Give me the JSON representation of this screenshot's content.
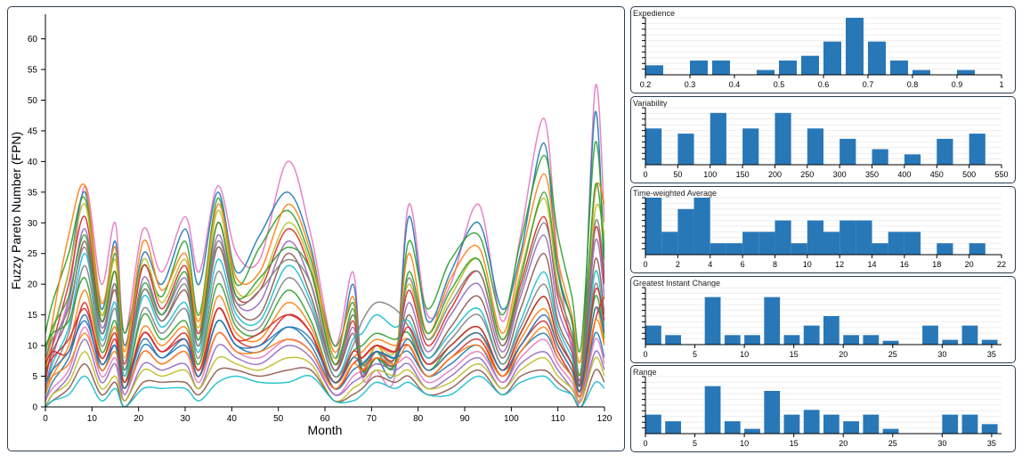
{
  "chart_data": [
    {
      "type": "line",
      "title": "",
      "xlabel": "Month",
      "ylabel": "Fuzzy Pareto Number (FPN)",
      "xlim": [
        0,
        120
      ],
      "ylim": [
        0,
        64
      ],
      "x_ticks": [
        0,
        10,
        20,
        30,
        40,
        50,
        60,
        70,
        80,
        90,
        100,
        110,
        120
      ],
      "y_ticks": [
        0,
        5,
        10,
        15,
        20,
        25,
        30,
        35,
        40,
        45,
        50,
        55,
        60
      ],
      "grid": false,
      "legend": "none",
      "x": [
        0,
        1.5,
        5,
        8.5,
        12,
        15,
        17,
        21,
        25,
        30,
        33,
        37,
        41,
        46,
        52,
        57,
        62,
        66,
        68,
        71,
        75,
        78,
        82,
        87,
        93,
        98,
        102,
        107,
        110,
        113,
        115,
        118,
        120
      ],
      "series": [
        {
          "color": "#e377c2",
          "values": [
            8,
            10,
            18,
            36,
            20,
            30,
            12,
            29,
            22,
            31,
            22,
            36,
            25,
            24,
            40,
            28,
            10,
            22,
            5,
            6,
            5,
            33,
            15,
            20,
            33,
            14,
            28,
            47,
            24,
            9,
            3,
            52,
            30
          ]
        },
        {
          "color": "#1f77b4",
          "values": [
            8,
            12,
            22,
            35,
            16,
            27,
            10,
            25,
            20,
            29,
            20,
            35,
            22,
            28,
            35,
            26,
            8,
            20,
            6,
            8,
            6,
            31,
            14,
            22,
            30,
            16,
            25,
            43,
            22,
            14,
            5,
            48,
            20
          ]
        },
        {
          "color": "#2ca02c",
          "values": [
            12,
            17,
            25,
            34,
            15,
            25,
            12,
            23,
            18,
            27,
            15,
            34,
            20,
            26,
            32,
            24,
            10,
            17,
            7,
            9,
            7,
            27,
            16,
            24,
            28,
            15,
            27,
            41,
            28,
            18,
            10,
            43,
            25
          ]
        },
        {
          "color": "#ff7f0e",
          "values": [
            6,
            14,
            28,
            36,
            17,
            26,
            9,
            27,
            19,
            25,
            14,
            33,
            21,
            22,
            33,
            25,
            9,
            18,
            6,
            10,
            8,
            25,
            12,
            21,
            26,
            12,
            24,
            38,
            24,
            15,
            8,
            35,
            33
          ]
        },
        {
          "color": "#bcbd22",
          "values": [
            5,
            12,
            22,
            33,
            15,
            24,
            8,
            24,
            17,
            24,
            13,
            32,
            19,
            20,
            30,
            23,
            8,
            15,
            7,
            10,
            9,
            20,
            11,
            18,
            24,
            11,
            22,
            34,
            20,
            12,
            6,
            32,
            28
          ]
        },
        {
          "color": "#d62728",
          "values": [
            4,
            10,
            20,
            31,
            14,
            22,
            7,
            23,
            16,
            23,
            12,
            30,
            18,
            19,
            29,
            22,
            7,
            14,
            6,
            9,
            8,
            19,
            10,
            16,
            22,
            10,
            20,
            31,
            18,
            11,
            5,
            29,
            20
          ]
        },
        {
          "color": "#9467bd",
          "values": [
            3,
            8,
            17,
            29,
            13,
            20,
            6,
            21,
            15,
            21,
            11,
            28,
            17,
            17,
            27,
            20,
            6,
            13,
            5,
            8,
            7,
            17,
            9,
            15,
            20,
            9,
            18,
            28,
            16,
            10,
            4,
            27,
            18
          ]
        },
        {
          "color": "#8c564b",
          "values": [
            5,
            9,
            15,
            27,
            12,
            19,
            5,
            19,
            14,
            19,
            10,
            26,
            16,
            15,
            25,
            18,
            6,
            12,
            5,
            8,
            7,
            15,
            8,
            13,
            18,
            8,
            16,
            25,
            14,
            9,
            4,
            24,
            15
          ]
        },
        {
          "color": "#17becf",
          "values": [
            2,
            7,
            13,
            25,
            11,
            17,
            5,
            18,
            13,
            17,
            9,
            24,
            15,
            14,
            23,
            17,
            5,
            11,
            12,
            15,
            13,
            14,
            8,
            12,
            16,
            7,
            14,
            22,
            13,
            8,
            3,
            22,
            13
          ]
        },
        {
          "color": "#7f7f7f",
          "values": [
            3,
            6,
            12,
            23,
            10,
            16,
            4,
            16,
            12,
            16,
            8,
            22,
            14,
            13,
            21,
            16,
            5,
            10,
            14,
            17,
            16,
            13,
            7,
            11,
            15,
            7,
            13,
            20,
            12,
            7,
            3,
            20,
            12
          ]
        },
        {
          "color": "#2ca02c",
          "values": [
            10,
            12,
            14,
            21,
            9,
            14,
            4,
            15,
            11,
            14,
            7,
            20,
            13,
            12,
            19,
            14,
            4,
            9,
            10,
            12,
            11,
            12,
            6,
            10,
            13,
            6,
            12,
            18,
            11,
            7,
            3,
            18,
            11
          ]
        },
        {
          "color": "#ff7f0e",
          "values": [
            2,
            5,
            10,
            19,
            8,
            13,
            3,
            13,
            10,
            13,
            6,
            18,
            12,
            11,
            17,
            13,
            4,
            8,
            9,
            11,
            10,
            11,
            6,
            9,
            12,
            5,
            11,
            16,
            10,
            6,
            2,
            16,
            10
          ]
        },
        {
          "color": "#d62728",
          "values": [
            7,
            9,
            9,
            17,
            7,
            11,
            3,
            12,
            9,
            11,
            5,
            16,
            11,
            10,
            15,
            12,
            3,
            7,
            8,
            10,
            9,
            10,
            5,
            8,
            11,
            5,
            10,
            14,
            9,
            5,
            2,
            14,
            18
          ]
        },
        {
          "color": "#1f77b4",
          "values": [
            1,
            4,
            8,
            15,
            6,
            10,
            2,
            10,
            8,
            10,
            5,
            14,
            10,
            9,
            13,
            10,
            3,
            6,
            7,
            9,
            8,
            9,
            5,
            7,
            10,
            4,
            9,
            12,
            8,
            5,
            2,
            12,
            8
          ]
        },
        {
          "color": "#e377c2",
          "values": [
            1,
            3,
            6,
            13,
            5,
            8,
            2,
            9,
            7,
            9,
            4,
            12,
            9,
            8,
            11,
            9,
            2,
            5,
            6,
            8,
            7,
            8,
            4,
            6,
            9,
            4,
            8,
            11,
            7,
            4,
            1,
            11,
            7
          ]
        },
        {
          "color": "#9467bd",
          "values": [
            0,
            2,
            5,
            11,
            4,
            7,
            1,
            7,
            6,
            7,
            3,
            10,
            8,
            7,
            10,
            8,
            2,
            4,
            5,
            7,
            6,
            7,
            3,
            5,
            8,
            3,
            7,
            9,
            6,
            3,
            1,
            9,
            6
          ]
        },
        {
          "color": "#bcbd22",
          "values": [
            0,
            2,
            4,
            9,
            3,
            5,
            1,
            6,
            5,
            6,
            3,
            8,
            7,
            6,
            8,
            7,
            1,
            3,
            4,
            6,
            5,
            6,
            3,
            4,
            7,
            3,
            6,
            8,
            5,
            3,
            1,
            8,
            5
          ]
        },
        {
          "color": "#8c564b",
          "values": [
            0,
            1,
            3,
            7,
            2,
            4,
            0,
            4,
            4,
            4,
            2,
            6,
            6,
            5,
            6,
            6,
            1,
            2,
            3,
            5,
            4,
            5,
            2,
            3,
            6,
            2,
            5,
            6,
            4,
            2,
            0,
            6,
            4
          ]
        },
        {
          "color": "#17becf",
          "values": [
            0,
            1,
            2,
            5,
            1,
            3,
            0,
            3,
            3,
            3,
            1,
            4,
            5,
            4,
            4,
            5,
            1,
            1,
            2,
            4,
            3,
            4,
            2,
            2,
            5,
            2,
            4,
            5,
            3,
            2,
            0,
            4,
            3
          ]
        },
        {
          "color": "#2ca02c",
          "values": [
            9,
            13,
            18,
            28,
            14,
            22,
            6,
            20,
            15,
            22,
            11,
            30,
            18,
            21,
            26,
            22,
            7,
            16,
            6,
            8,
            7,
            22,
            12,
            19,
            24,
            11,
            21,
            35,
            22,
            14,
            6,
            36,
            24
          ]
        },
        {
          "color": "#7f7f7f",
          "values": [
            8,
            11,
            16,
            26,
            12,
            20,
            6,
            19,
            14,
            20,
            10,
            27,
            17,
            19,
            24,
            20,
            6,
            15,
            7,
            9,
            8,
            21,
            11,
            17,
            22,
            10,
            19,
            30,
            19,
            12,
            5,
            30,
            22
          ]
        },
        {
          "color": "#d62728",
          "values": [
            6,
            8,
            11,
            16,
            8,
            12,
            4,
            12,
            9,
            12,
            6,
            16,
            11,
            12,
            15,
            12,
            4,
            9,
            8,
            10,
            9,
            13,
            7,
            10,
            13,
            6,
            12,
            18,
            11,
            7,
            3,
            19,
            14
          ]
        },
        {
          "color": "#ff7f0e",
          "values": [
            3,
            5,
            7,
            12,
            6,
            9,
            3,
            9,
            7,
            9,
            5,
            12,
            9,
            9,
            11,
            9,
            3,
            7,
            6,
            8,
            7,
            10,
            5,
            8,
            10,
            5,
            9,
            13,
            8,
            5,
            2,
            14,
            10
          ]
        },
        {
          "color": "#1f77b4",
          "values": [
            4,
            6,
            9,
            14,
            7,
            10,
            3,
            11,
            8,
            11,
            5,
            14,
            10,
            10,
            13,
            11,
            4,
            8,
            7,
            9,
            8,
            11,
            6,
            9,
            12,
            6,
            10,
            15,
            10,
            6,
            3,
            16,
            12
          ]
        }
      ]
    },
    {
      "type": "bar",
      "title": "Expedience",
      "xlim": [
        0.2,
        1.0
      ],
      "ylim": [
        0,
        12
      ],
      "x_ticks": [
        0.2,
        0.3,
        0.4,
        0.5,
        0.6,
        0.7,
        0.8,
        0.9,
        1.0
      ],
      "bin_width": 0.04,
      "bins": [
        0.2,
        0.3,
        0.35,
        0.45,
        0.5,
        0.55,
        0.6,
        0.65,
        0.7,
        0.75,
        0.8,
        0.9
      ],
      "values": [
        2,
        3,
        3,
        1,
        3,
        4,
        7,
        12,
        7,
        3,
        1,
        1
      ]
    },
    {
      "type": "bar",
      "title": "Variability",
      "xlim": [
        0,
        550
      ],
      "ylim": [
        0,
        11
      ],
      "x_ticks": [
        0,
        50,
        100,
        150,
        200,
        250,
        300,
        350,
        400,
        450,
        500,
        550
      ],
      "bin_width": 25,
      "bins": [
        0,
        50,
        100,
        150,
        200,
        250,
        300,
        350,
        400,
        450,
        500
      ],
      "values": [
        7,
        6,
        10,
        7,
        10,
        7,
        5,
        3,
        2,
        5,
        6
      ]
    },
    {
      "type": "bar",
      "title": "Time-weighted Average",
      "xlim": [
        0,
        22
      ],
      "ylim": [
        0,
        5
      ],
      "x_ticks": [
        0,
        2,
        4,
        6,
        8,
        10,
        12,
        14,
        16,
        18,
        20,
        22
      ],
      "bin_width": 1,
      "bins": [
        0,
        1,
        2,
        3,
        4,
        5,
        6,
        7,
        8,
        9,
        10,
        11,
        12,
        13,
        14,
        15,
        16,
        18,
        20
      ],
      "values": [
        5,
        2,
        4,
        5,
        1,
        1,
        2,
        2,
        3,
        1,
        3,
        2,
        3,
        3,
        1,
        2,
        2,
        1,
        1
      ]
    },
    {
      "type": "bar",
      "title": "Greatest Instant Change",
      "xlim": [
        0,
        36
      ],
      "ylim": [
        0,
        6
      ],
      "x_ticks": [
        0,
        5,
        10,
        15,
        20,
        25,
        30,
        35
      ],
      "bin_width": 1.6,
      "bins": [
        0,
        2,
        6,
        8,
        10,
        12,
        14,
        16,
        18,
        20,
        22,
        24,
        28,
        30,
        32,
        34
      ],
      "values": [
        2,
        1,
        5,
        1,
        1,
        5,
        1,
        2,
        3,
        1,
        1,
        0.4,
        2,
        0.5,
        2,
        0.5
      ]
    },
    {
      "type": "bar",
      "title": "Range",
      "xlim": [
        0,
        36
      ],
      "ylim": [
        0,
        6
      ],
      "x_ticks": [
        0,
        5,
        10,
        15,
        20,
        25,
        30,
        35
      ],
      "bin_width": 1.6,
      "bins": [
        0,
        2,
        6,
        8,
        10,
        12,
        14,
        16,
        18,
        20,
        22,
        24,
        30,
        32,
        34
      ],
      "values": [
        2,
        1.3,
        5,
        1.3,
        0.5,
        4.5,
        2,
        2.5,
        2,
        1.3,
        2,
        0.5,
        2,
        2,
        1
      ]
    }
  ]
}
